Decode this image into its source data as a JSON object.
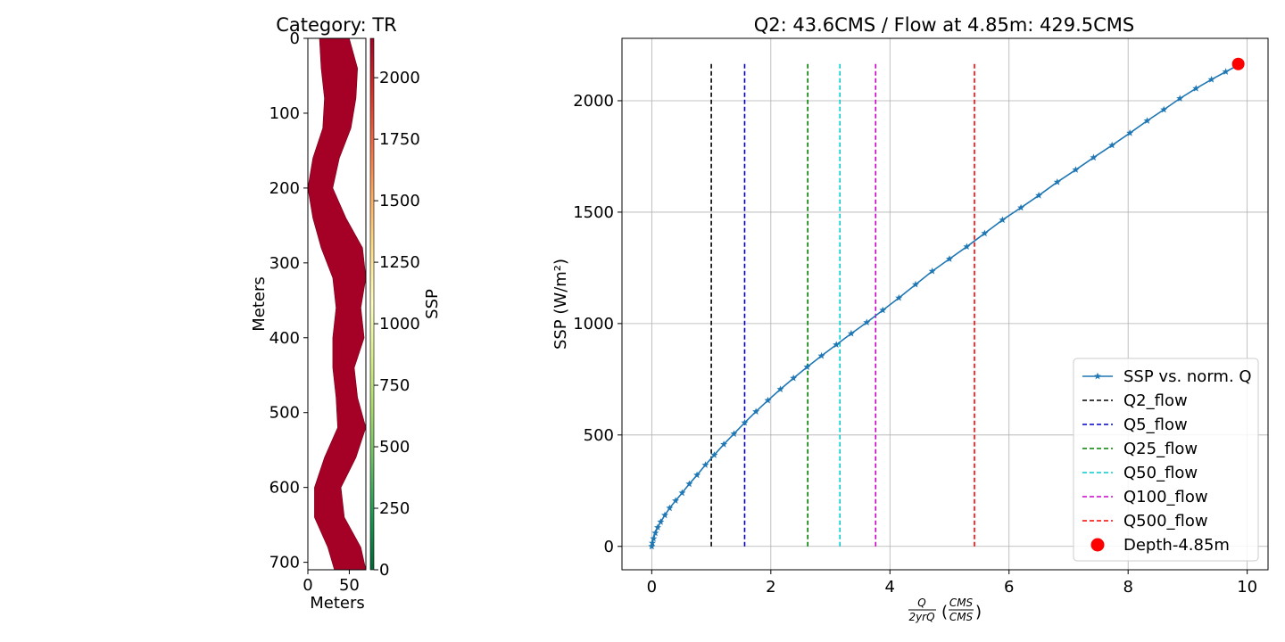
{
  "chart_data": [
    {
      "type": "heatmap",
      "title": "Category: TR",
      "xlabel": "Meters",
      "ylabel": "Meters",
      "xlim": [
        0,
        70
      ],
      "ylim": [
        710,
        0
      ],
      "xticks": [
        "0",
        "50"
      ],
      "yticks": [
        "0",
        "100",
        "200",
        "300",
        "400",
        "500",
        "600",
        "700"
      ],
      "fill_value": 2150,
      "fill_color": "#a50026",
      "colorbar": {
        "label": "SSP",
        "range": [
          0,
          2160
        ],
        "ticks": [
          "0",
          "250",
          "500",
          "750",
          "1000",
          "1250",
          "1500",
          "1750",
          "2000"
        ],
        "colors": [
          "#006837",
          "#1a9850",
          "#66bd63",
          "#a6d96a",
          "#d9ef8b",
          "#ffffbf",
          "#fee08b",
          "#fdae61",
          "#f46d43",
          "#d73027",
          "#a50026"
        ]
      },
      "channel_extent": [
        {
          "y": 0,
          "left": 14,
          "right": 50
        },
        {
          "y": 40,
          "left": 16,
          "right": 60
        },
        {
          "y": 80,
          "left": 20,
          "right": 58
        },
        {
          "y": 120,
          "left": 18,
          "right": 52
        },
        {
          "y": 160,
          "left": 6,
          "right": 38
        },
        {
          "y": 200,
          "left": 0,
          "right": 30
        },
        {
          "y": 240,
          "left": 6,
          "right": 46
        },
        {
          "y": 280,
          "left": 16,
          "right": 66
        },
        {
          "y": 320,
          "left": 30,
          "right": 70
        },
        {
          "y": 360,
          "left": 34,
          "right": 64
        },
        {
          "y": 400,
          "left": 30,
          "right": 68
        },
        {
          "y": 440,
          "left": 30,
          "right": 56
        },
        {
          "y": 480,
          "left": 34,
          "right": 60
        },
        {
          "y": 520,
          "left": 36,
          "right": 70
        },
        {
          "y": 560,
          "left": 20,
          "right": 58
        },
        {
          "y": 600,
          "left": 8,
          "right": 40
        },
        {
          "y": 640,
          "left": 8,
          "right": 44
        },
        {
          "y": 680,
          "left": 24,
          "right": 64
        },
        {
          "y": 710,
          "left": 32,
          "right": 70
        }
      ]
    },
    {
      "type": "line",
      "title": "Q2: 43.6CMS / Flow at 4.85m: 429.5CMS",
      "xlabel_num": "Q",
      "xlabel_den": "2yrQ",
      "xlabel_unit_num": "CMS",
      "xlabel_unit_den": "CMS",
      "ylabel": "SSP (W/m²)",
      "xlim": [
        -0.5,
        10.35
      ],
      "ylim": [
        -105,
        2280
      ],
      "xticks": [
        "0",
        "2",
        "4",
        "6",
        "8",
        "10"
      ],
      "yticks": [
        "0",
        "500",
        "1000",
        "1500",
        "2000"
      ],
      "grid": true,
      "legend_position": "lower-right",
      "series": [
        {
          "name": "SSP vs. norm. Q",
          "color": "#1f77b4",
          "marker": "star",
          "x": [
            0,
            0.01,
            0.03,
            0.06,
            0.1,
            0.15,
            0.22,
            0.3,
            0.4,
            0.51,
            0.63,
            0.76,
            0.9,
            1.05,
            1.21,
            1.38,
            1.56,
            1.75,
            1.95,
            2.16,
            2.38,
            2.61,
            2.85,
            3.1,
            3.35,
            3.61,
            3.88,
            4.15,
            4.43,
            4.71,
            5.0,
            5.29,
            5.59,
            5.89,
            6.2,
            6.5,
            6.81,
            7.12,
            7.42,
            7.73,
            8.03,
            8.32,
            8.6,
            8.87,
            9.14,
            9.4,
            9.64,
            9.85
          ],
          "y": [
            0,
            15,
            35,
            60,
            85,
            110,
            140,
            172,
            205,
            240,
            280,
            320,
            365,
            410,
            458,
            505,
            555,
            605,
            655,
            705,
            755,
            805,
            855,
            905,
            955,
            1005,
            1060,
            1115,
            1175,
            1235,
            1290,
            1345,
            1405,
            1465,
            1520,
            1575,
            1635,
            1690,
            1745,
            1800,
            1855,
            1910,
            1960,
            2010,
            2055,
            2095,
            2130,
            2160
          ]
        }
      ],
      "vlines": [
        {
          "name": "Q2_flow",
          "x": 1.0,
          "color": "#000000",
          "ymax": 2165
        },
        {
          "name": "Q5_flow",
          "x": 1.56,
          "color": "#0000cc",
          "ymax": 2165
        },
        {
          "name": "Q25_flow",
          "x": 2.62,
          "color": "#008000",
          "ymax": 2165
        },
        {
          "name": "Q50_flow",
          "x": 3.16,
          "color": "#00cccc",
          "ymax": 2165
        },
        {
          "name": "Q100_flow",
          "x": 3.76,
          "color": "#cc00cc",
          "ymax": 2165
        },
        {
          "name": "Q500_flow",
          "x": 5.42,
          "color": "#ff0000",
          "ymax": 2165
        }
      ],
      "point": {
        "name": "Depth-4.85m",
        "x": 9.85,
        "y": 2165,
        "color": "#ff0000"
      }
    }
  ]
}
